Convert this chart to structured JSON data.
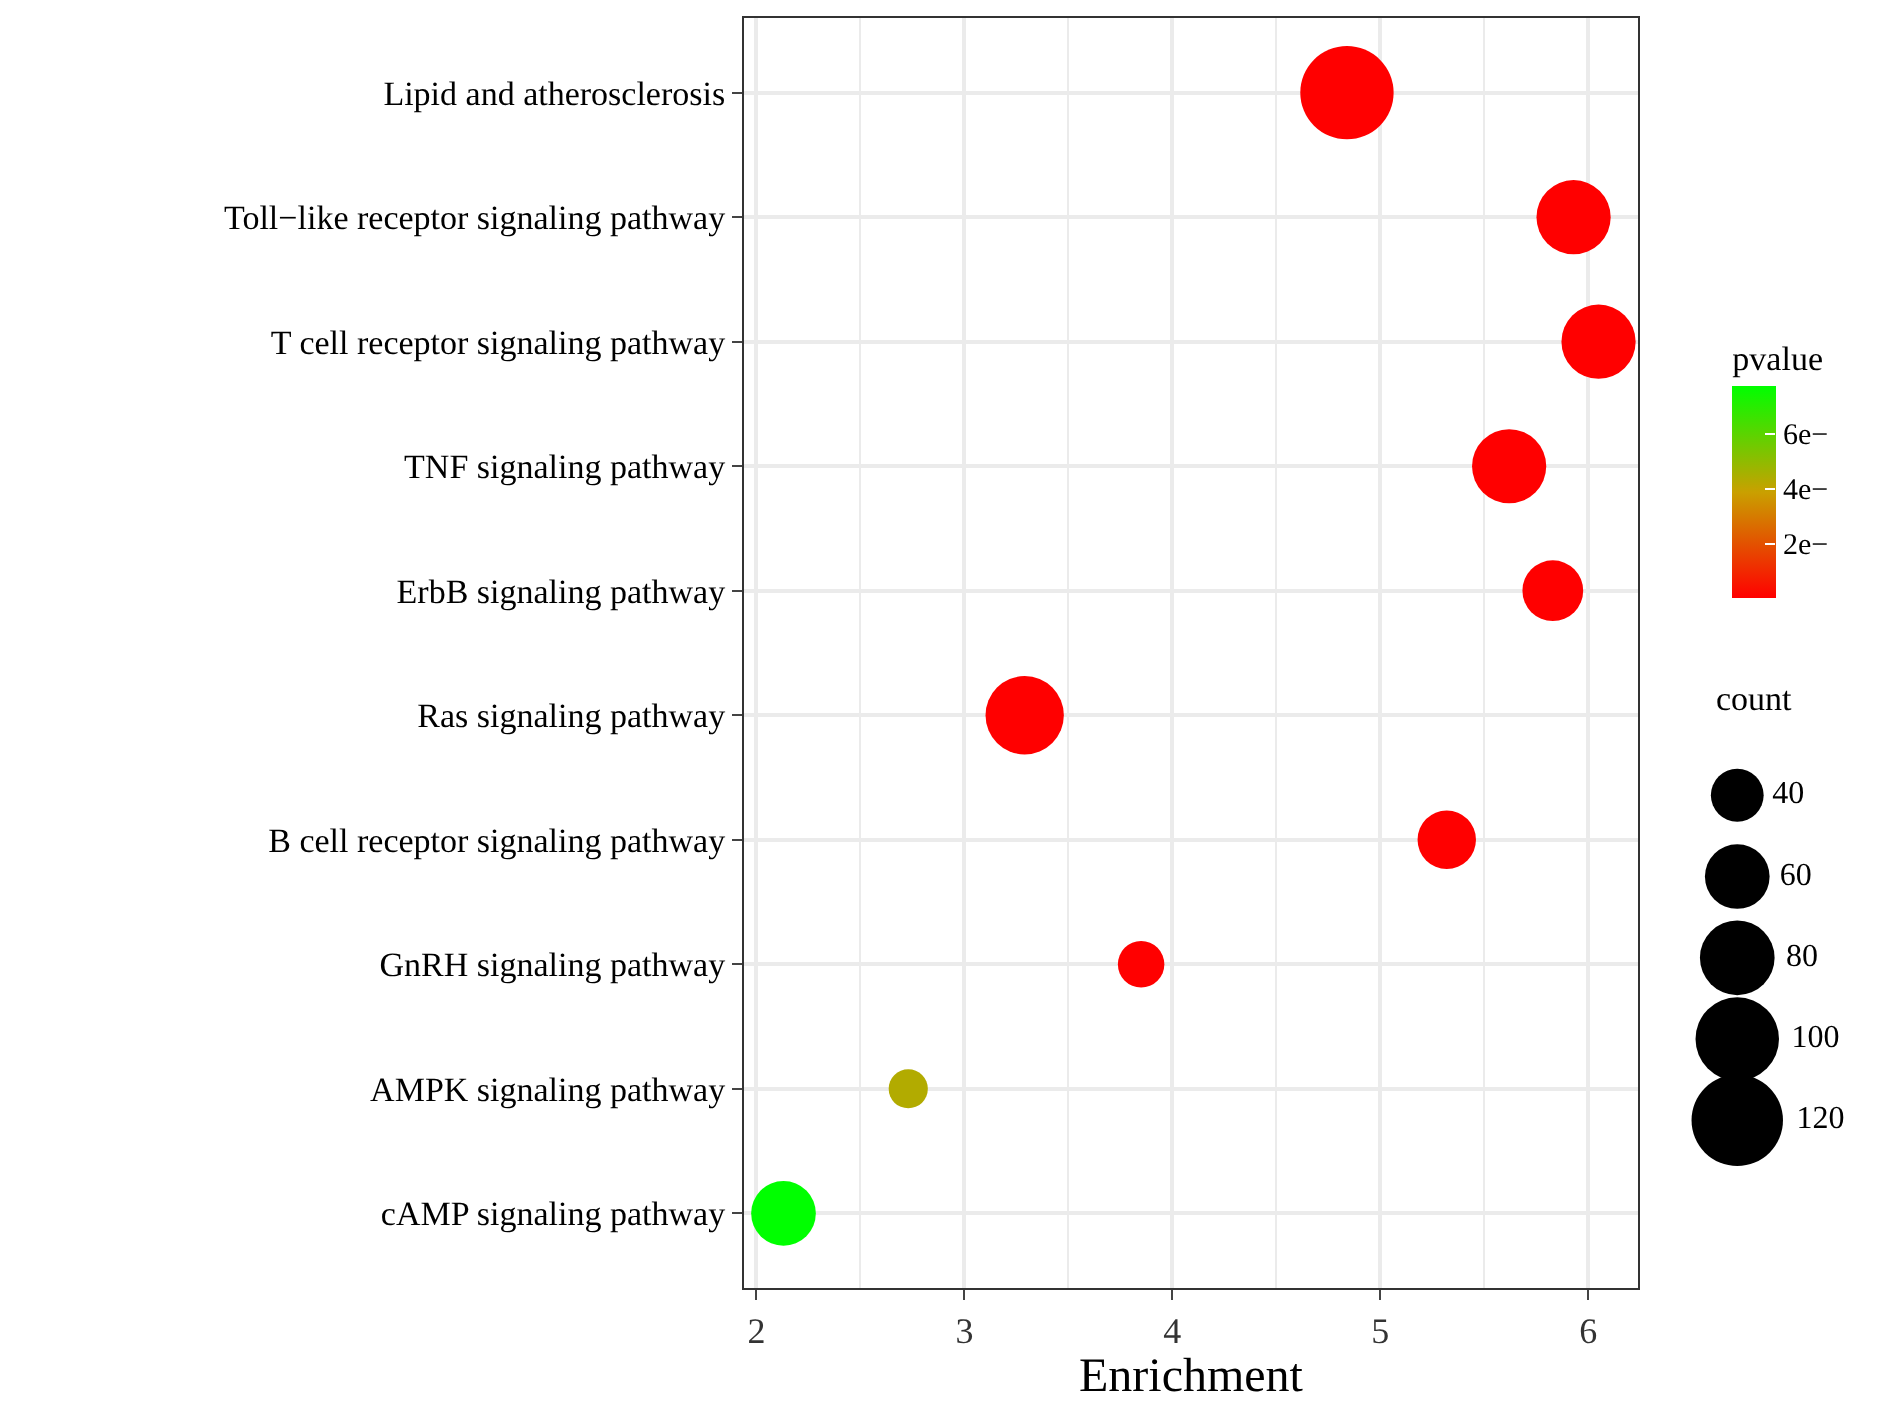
{
  "chart_data": {
    "type": "bubble",
    "xlabel": "Enrichment",
    "legend_title": "count",
    "clabel": "pvalue",
    "categories": [
      "Lipid and atherosclerosis",
      "Toll−like receptor signaling pathway",
      "T cell receptor signaling pathway",
      "TNF signaling pathway",
      "ErbB signaling pathway",
      "Ras signaling pathway",
      "B cell receptor signaling pathway",
      "GnRH signaling pathway",
      "AMPK signaling pathway",
      "cAMP signaling pathway"
    ],
    "values": [
      4.84,
      5.93,
      6.05,
      5.62,
      5.83,
      3.29,
      5.32,
      3.85,
      2.73,
      2.13
    ],
    "sizes": [
      125,
      79,
      79,
      79,
      53,
      88,
      49,
      31,
      22,
      60
    ],
    "cvalues": [
      0,
      0,
      0,
      0,
      0,
      0,
      0,
      0,
      4.3,
      7.7
    ],
    "size_legend": [
      40,
      60,
      80,
      100,
      120
    ],
    "clim": [
      0,
      7.7
    ],
    "cticks": [
      {
        "value": 2,
        "label": "2e−"
      },
      {
        "value": 4,
        "label": "4e−"
      },
      {
        "value": 6,
        "label": "6e−"
      }
    ],
    "xlim": [
      1.94,
      6.24
    ],
    "xticks": [
      2,
      3,
      4,
      5,
      6
    ],
    "orientation": "horizontal",
    "grid": true
  }
}
